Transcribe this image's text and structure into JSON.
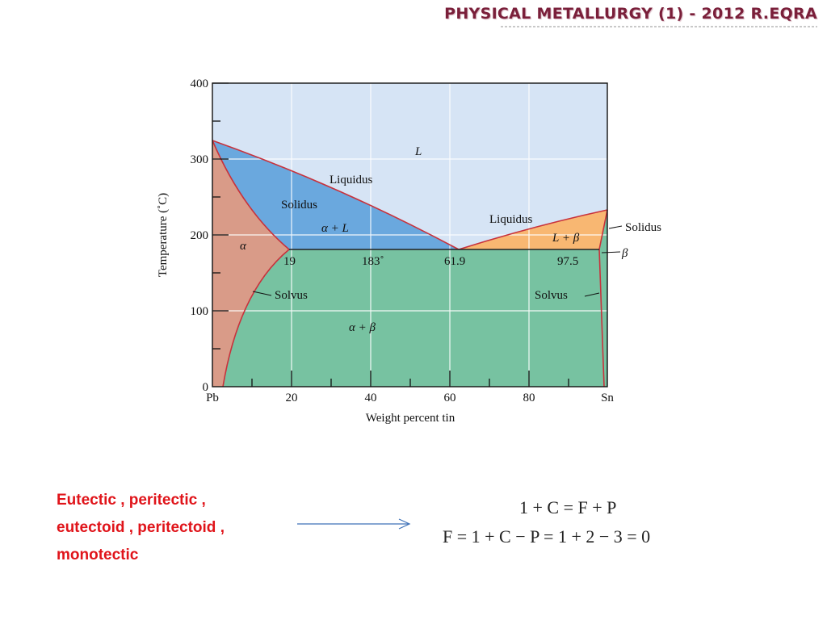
{
  "header": {
    "title": "PHYSICAL METALLURGY (1) - 2012 R.EQRA"
  },
  "diagram": {
    "y_axis_label": "Temperature (˚C)",
    "x_axis_label": "Weight percent tin",
    "y_ticks": [
      "0",
      "100",
      "200",
      "300",
      "400"
    ],
    "x_ticks": [
      "Pb",
      "20",
      "40",
      "60",
      "80",
      "Sn"
    ],
    "x_range": [
      0,
      100
    ],
    "y_range": [
      0,
      400
    ],
    "key_points": {
      "pb_melt": 327,
      "sn_melt": 232,
      "eutectic_temp": 183,
      "eutectic_comp": 61.9,
      "alpha_max": 19,
      "beta_min": 97.5
    },
    "labels": {
      "liquid": "L",
      "liquidus_left": "Liquidus",
      "liquidus_right": "Liquidus",
      "solidus_left": "Solidus",
      "solidus_right": "Solidus",
      "alpha_plus_liquid": "α + L",
      "liquid_plus_beta": "L + β",
      "alpha": "α",
      "beta": "β",
      "alpha_plus_beta": "α + β",
      "solvus_left": "Solvus",
      "solvus_right": "Solvus",
      "comp_19": "19",
      "temp_183": "183˚",
      "comp_61_9": "61.9",
      "comp_97_5": "97.5"
    },
    "colors": {
      "liquid": "#d6e4f5",
      "alpha_liquid": "#6aa8de",
      "liquid_beta": "#f8b772",
      "alpha": "#d99b88",
      "alpha_beta": "#77c2a1",
      "boundary": "#c8323c"
    }
  },
  "note": {
    "lines": [
      "Eutectic , peritectic ,",
      "eutectoid , peritectoid ,",
      "monotectic"
    ]
  },
  "formulas": {
    "line1": "1 + C = F + P",
    "line2": "F = 1 + C − P = 1 + 2 − 3 = 0"
  },
  "arrow_color": "#3f72b8"
}
